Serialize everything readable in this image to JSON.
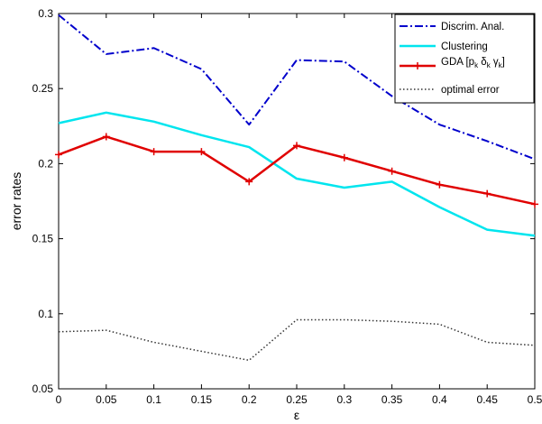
{
  "chart_data": {
    "type": "line",
    "xlabel": "ε",
    "ylabel": "error rates",
    "xlim": [
      0,
      0.5
    ],
    "ylim": [
      0.05,
      0.3
    ],
    "x": [
      0,
      0.05,
      0.1,
      0.15,
      0.2,
      0.25,
      0.3,
      0.35,
      0.4,
      0.45,
      0.5
    ],
    "x_ticks": [
      "0",
      "0.05",
      "0.1",
      "0.15",
      "0.2",
      "0.25",
      "0.3",
      "0.35",
      "0.4",
      "0.45",
      "0.5"
    ],
    "y_ticks": [
      "0.05",
      "0.1",
      "0.15",
      "0.2",
      "0.25",
      "0.3"
    ],
    "grid": false,
    "legend_position": "top-right",
    "series": [
      {
        "name": "Discrim. Anal.",
        "color": "#0000cc",
        "style": "dash-dot",
        "values": [
          0.299,
          0.273,
          0.277,
          0.263,
          0.226,
          0.269,
          0.268,
          0.245,
          0.226,
          0.215,
          0.203
        ]
      },
      {
        "name": "Clustering",
        "color": "#00e5ee",
        "style": "solid",
        "values": [
          0.227,
          0.234,
          0.228,
          0.219,
          0.211,
          0.19,
          0.184,
          0.188,
          0.171,
          0.156,
          0.152
        ]
      },
      {
        "name": "GDA [pk δk γk]",
        "color": "#e00000",
        "style": "solid-plus",
        "values": [
          0.206,
          0.218,
          0.208,
          0.208,
          0.188,
          0.212,
          0.204,
          0.195,
          0.186,
          0.18,
          0.173
        ]
      },
      {
        "name": "optimal error",
        "color": "#333333",
        "style": "dotted",
        "values": [
          0.088,
          0.089,
          0.081,
          0.075,
          0.069,
          0.096,
          0.096,
          0.095,
          0.093,
          0.081,
          0.079
        ]
      }
    ]
  }
}
